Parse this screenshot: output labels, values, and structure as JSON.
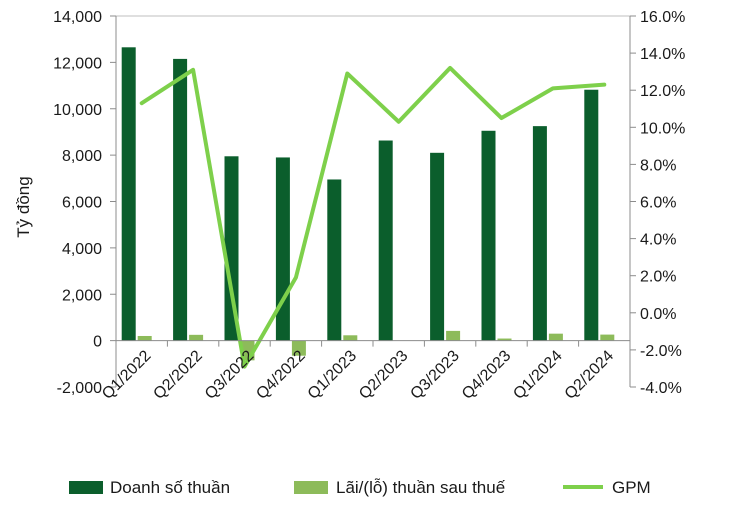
{
  "chart_data": {
    "type": "bar",
    "categories": [
      "Q1/2022",
      "Q2/2022",
      "Q3/2022",
      "Q4/2022",
      "Q1/2023",
      "Q2/2023",
      "Q3/2023",
      "Q4/2023",
      "Q1/2024",
      "Q2/2024"
    ],
    "ylabel": "Tỷ đồng",
    "ylim": [
      -2000,
      14000
    ],
    "y_ticks": [
      "-2,000",
      "0",
      "2,000",
      "4,000",
      "6,000",
      "8,000",
      "10,000",
      "12,000",
      "14,000"
    ],
    "y2lim": [
      -4.0,
      16.0
    ],
    "y2_ticks": [
      "-4.0%",
      "-2.0%",
      "0.0%",
      "2.0%",
      "4.0%",
      "6.0%",
      "8.0%",
      "10.0%",
      "12.0%",
      "14.0%",
      "16.0%"
    ],
    "grid": false,
    "legend_position": "bottom",
    "series": [
      {
        "name": "Doanh số thuần",
        "type": "bar",
        "axis": "left",
        "color": "#0b5e2c",
        "values": [
          12650,
          12150,
          7950,
          7900,
          6950,
          8630,
          8100,
          9050,
          9250,
          10820
        ]
      },
      {
        "name": "Lãi/(lỗ) thuần sau thuế",
        "type": "bar",
        "axis": "left",
        "color": "#8dbb5a",
        "values": [
          200,
          250,
          -850,
          -650,
          230,
          0,
          420,
          90,
          300,
          260
        ]
      },
      {
        "name": "GPM",
        "type": "line",
        "axis": "right",
        "color": "#7ed04b",
        "values": [
          11.3,
          13.1,
          -2.9,
          1.9,
          12.9,
          10.3,
          13.2,
          10.5,
          12.1,
          12.3
        ]
      }
    ]
  }
}
